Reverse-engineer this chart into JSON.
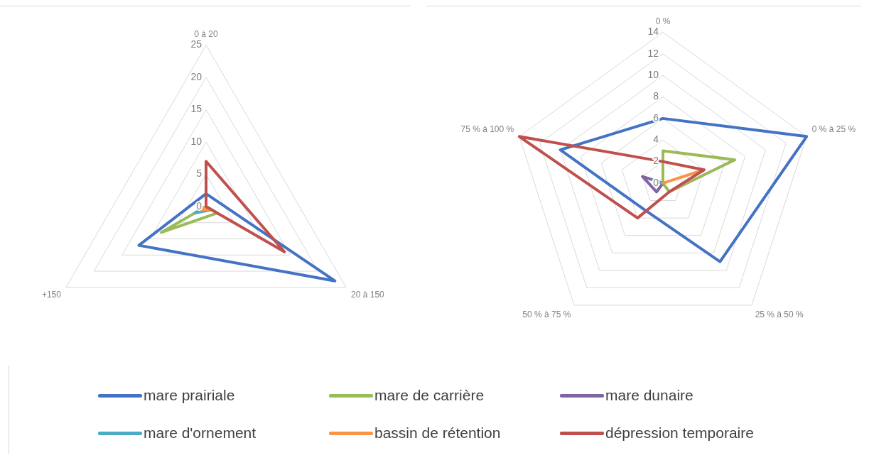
{
  "chart_data": [
    {
      "type": "radar",
      "categories": [
        "0 à 20",
        "20 à 150",
        "+150"
      ],
      "ylim": [
        0,
        25
      ],
      "yticks": [
        0,
        5,
        10,
        15,
        20,
        25
      ],
      "grid": true,
      "line_style": "solid",
      "marker": "none",
      "series": [
        {
          "color": "#4472c4",
          "values": [
            2,
            23,
            12
          ]
        },
        {
          "color": "#9bbb59",
          "values": [
            0,
            2,
            8
          ]
        },
        {
          "color": "#4bacc6",
          "values": [
            0,
            1,
            2
          ]
        },
        {
          "color": "#f79646",
          "values": [
            0,
            1,
            1
          ]
        },
        {
          "color": "#c0504d",
          "values": [
            7,
            14,
            0
          ]
        }
      ]
    },
    {
      "type": "radar",
      "categories": [
        "0 %",
        "0 % à 25 %",
        "25 % à 50 %",
        "50 % à 75 %",
        "75 % à 100 %"
      ],
      "ylim": [
        0,
        14
      ],
      "yticks": [
        0,
        2,
        4,
        6,
        8,
        10,
        12,
        14
      ],
      "grid": true,
      "legend": "bottom",
      "line_style": "solid",
      "marker": "none",
      "series": [
        {
          "name": "mare prairiale",
          "color": "#4472c4",
          "values": [
            6,
            14,
            9,
            3,
            10
          ]
        },
        {
          "name": "mare de carrière",
          "color": "#9bbb59",
          "values": [
            3,
            7,
            1,
            0,
            0
          ]
        },
        {
          "name": "mare dunaire",
          "color": "#8064a2",
          "values": [
            0,
            0,
            0,
            1,
            2
          ]
        },
        {
          "name": "mare d'ornement",
          "color": "#4bacc6",
          "values": [
            0,
            0,
            0,
            0,
            1
          ]
        },
        {
          "name": "bassin de rétention",
          "color": "#f79646",
          "values": [
            0,
            4,
            0,
            0,
            0
          ]
        },
        {
          "name": "dépression temporaire",
          "color": "#c0504d",
          "values": [
            2,
            4,
            1,
            4,
            14
          ]
        }
      ]
    }
  ]
}
